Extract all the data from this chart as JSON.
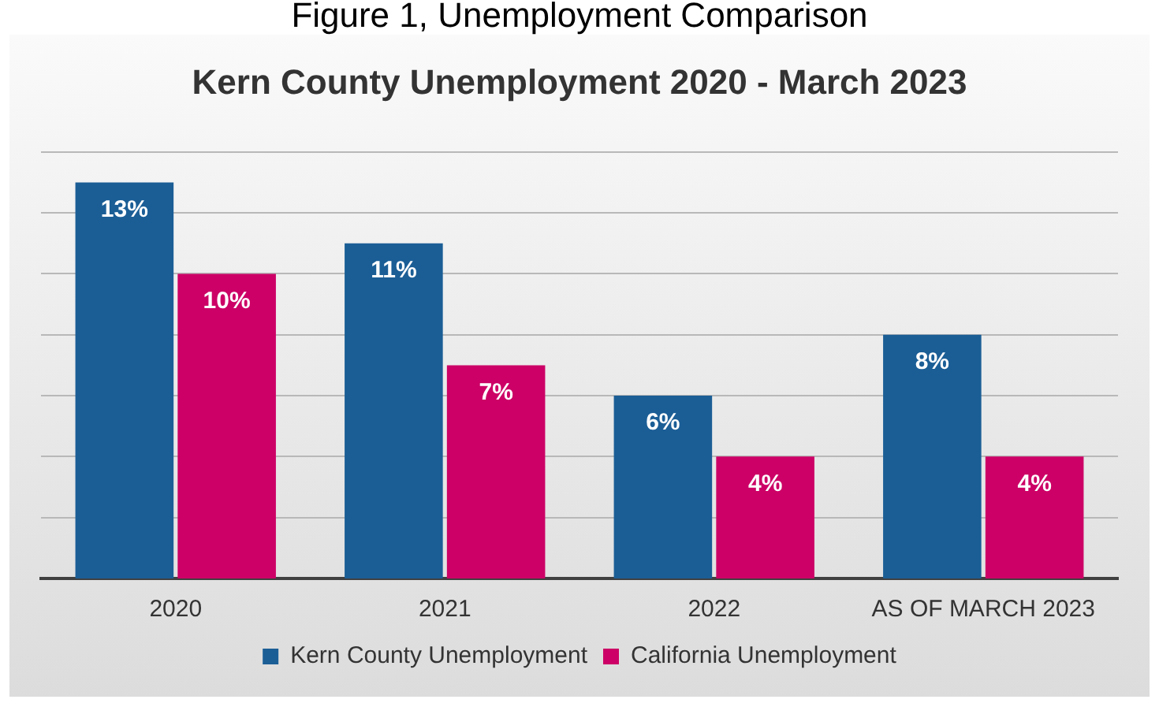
{
  "chart_data": {
    "type": "bar",
    "title": "Figure 1, Unemployment Comparison",
    "subtitle": "Kern County Unemployment 2020 - March 2023",
    "categories": [
      "2020",
      "2021",
      "2022",
      "AS OF MARCH 2023"
    ],
    "series": [
      {
        "name": "Kern County Unemployment",
        "color": "#1b5e96",
        "values": [
          13,
          11,
          6,
          8
        ],
        "value_labels": [
          "13%",
          "11%",
          "6%",
          "8%"
        ]
      },
      {
        "name": "California Unemployment",
        "color": "#cc0066",
        "values": [
          10,
          7,
          4,
          4
        ],
        "value_labels": [
          "10%",
          "7%",
          "4%",
          "4%"
        ]
      }
    ],
    "ylim": [
      0,
      14
    ],
    "yticks": [
      {
        "value": 0,
        "label": null
      },
      {
        "value": 2,
        "label": null
      },
      {
        "value": 4,
        "label": null
      },
      {
        "value": 6,
        "label": null
      },
      {
        "value": 8,
        "label": null
      },
      {
        "value": 10,
        "label": null
      },
      {
        "value": 12,
        "label": null
      },
      {
        "value": 14,
        "label": null
      }
    ],
    "grid": "y",
    "legend": "bottom",
    "tick_labels": "x"
  }
}
